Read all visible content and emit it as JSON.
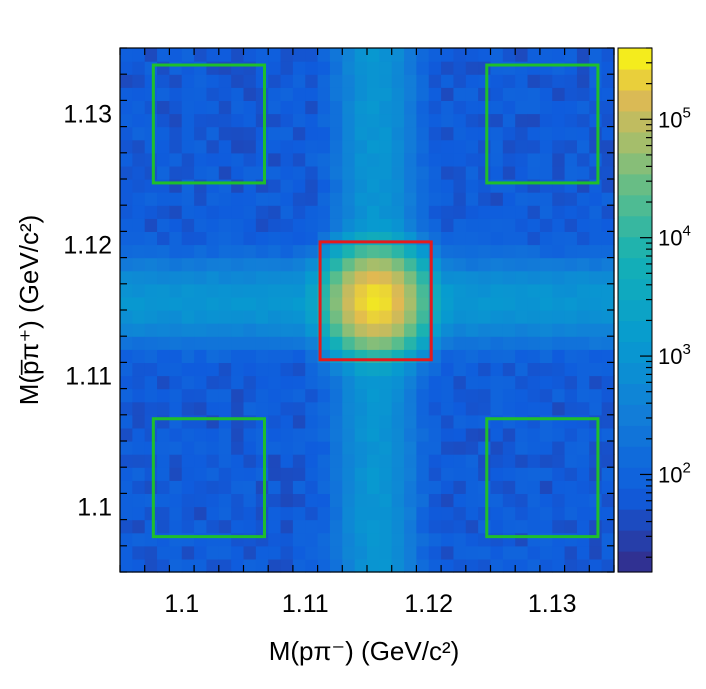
{
  "chart_data": {
    "type": "heatmap",
    "title": "",
    "xlabel": "M(pπ⁻) (GeV/c²)",
    "ylabel": "M(p̅π⁺) (GeV/c²)",
    "xlim": [
      1.095,
      1.135
    ],
    "ylim": [
      1.095,
      1.135
    ],
    "x_ticks": [
      1.1,
      1.11,
      1.12,
      1.13
    ],
    "y_ticks": [
      1.1,
      1.11,
      1.12,
      1.13
    ],
    "x_tick_labels": [
      "1.1",
      "1.11",
      "1.12",
      "1.13"
    ],
    "y_tick_labels": [
      "1.1",
      "1.11",
      "1.12",
      "1.13"
    ],
    "color_scale": "log",
    "zlim": [
      15,
      400000
    ],
    "colorbar_ticks": [
      {
        "value": 100,
        "base": "10",
        "exp": "2"
      },
      {
        "value": 1000,
        "base": "10",
        "exp": "3"
      },
      {
        "value": 10000,
        "base": "10",
        "exp": "4"
      },
      {
        "value": 100000,
        "base": "10",
        "exp": "5"
      }
    ],
    "peak": {
      "x": 1.1157,
      "y": 1.1157,
      "value": 300000
    },
    "band_level": 1000,
    "background_level": 70,
    "bins": 40,
    "signal_region": {
      "x": [
        1.1112,
        1.1202
      ],
      "y": [
        1.1112,
        1.1202
      ],
      "color": "#e41a1c"
    },
    "sideband_regions": [
      {
        "x": [
          1.0977,
          1.1067
        ],
        "y": [
          1.0977,
          1.1067
        ],
        "color": "#1fbf2b"
      },
      {
        "x": [
          1.1247,
          1.1337
        ],
        "y": [
          1.0977,
          1.1067
        ],
        "color": "#1fbf2b"
      },
      {
        "x": [
          1.0977,
          1.1067
        ],
        "y": [
          1.1247,
          1.1337
        ],
        "color": "#1fbf2b"
      },
      {
        "x": [
          1.1247,
          1.1337
        ],
        "y": [
          1.1247,
          1.1337
        ],
        "color": "#1fbf2b"
      }
    ]
  }
}
